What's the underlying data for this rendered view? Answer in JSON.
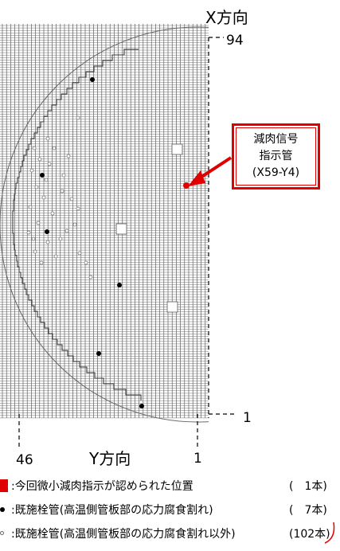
{
  "axes": {
    "x_direction_label": "X方向",
    "x_top_value": "94",
    "x_bottom_value": "1",
    "y_direction_label": "Y方向",
    "y_left_value": "46",
    "y_right_value": "1"
  },
  "callout": {
    "line1": "減肉信号",
    "line2": "指示管",
    "line3": "(X59-Y4)",
    "color": "#e00000"
  },
  "marked_tube_position": {
    "x": 59,
    "y": 4
  },
  "legend": [
    {
      "symbol": "red-square",
      "text": ":今回微小減肉指示が認められた位置",
      "count": "(　1本)"
    },
    {
      "symbol": "black-dot",
      "text": ":既施栓管(高温側管板部の応力腐食割れ)",
      "count": "(　7本)"
    },
    {
      "symbol": "hollow-dot",
      "text": ":既施栓管(高温側管板部の応力腐食割れ以外)",
      "count": "(102本)"
    }
  ]
}
